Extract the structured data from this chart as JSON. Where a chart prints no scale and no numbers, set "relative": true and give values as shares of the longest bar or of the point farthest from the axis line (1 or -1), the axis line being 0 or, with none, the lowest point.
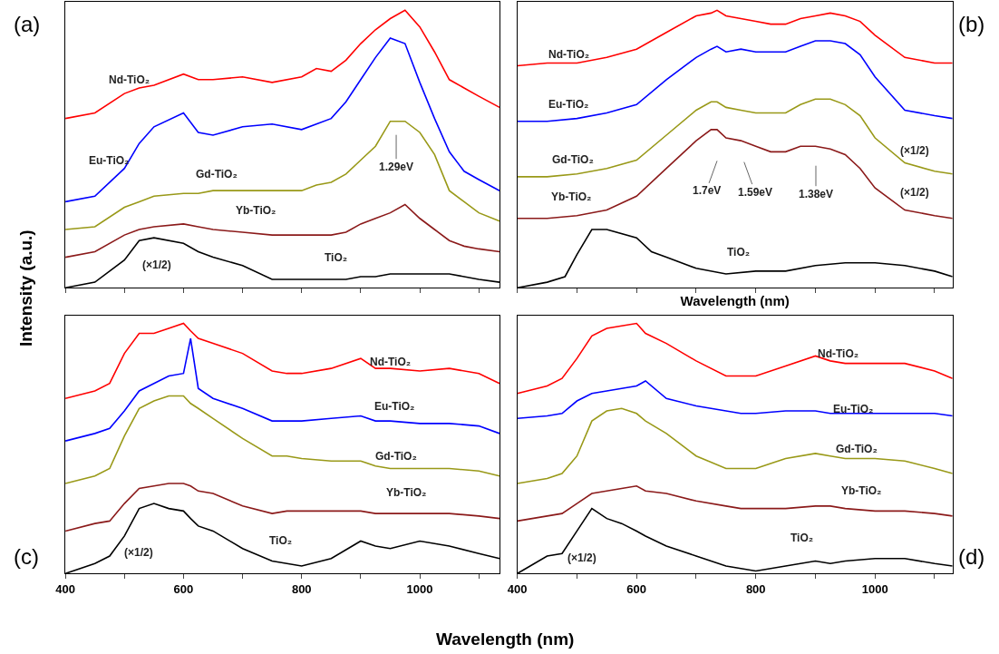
{
  "chart_data": [
    {
      "type": "line",
      "relative": true,
      "title": "(a)",
      "ylabel": "Intensity (a.u.)",
      "tick_labels": false,
      "xlim": [
        400,
        1135
      ],
      "xticks": [
        400,
        {
          "value": 500,
          "label": null
        },
        600,
        {
          "value": 700,
          "label": null
        },
        800,
        {
          "value": 900,
          "label": null
        },
        1000,
        {
          "value": 1100,
          "label": null
        }
      ],
      "x": [
        400,
        450,
        500,
        525,
        550,
        600,
        625,
        650,
        700,
        750,
        800,
        825,
        850,
        875,
        900,
        925,
        950,
        975,
        1000,
        1025,
        1050,
        1075,
        1100,
        1135
      ],
      "series": [
        {
          "name": "Nd-TiO₂",
          "color": "#ff0000",
          "values": [
            0.61,
            0.63,
            0.7,
            0.72,
            0.73,
            0.77,
            0.75,
            0.75,
            0.76,
            0.74,
            0.76,
            0.79,
            0.78,
            0.82,
            0.88,
            0.93,
            0.97,
            1.0,
            0.94,
            0.85,
            0.75,
            0.72,
            0.69,
            0.65
          ]
        },
        {
          "name": "Eu-TiO₂",
          "color": "#0000ff",
          "values": [
            0.31,
            0.33,
            0.43,
            0.52,
            0.58,
            0.63,
            0.56,
            0.55,
            0.58,
            0.59,
            0.57,
            0.59,
            0.61,
            0.67,
            0.75,
            0.83,
            0.9,
            0.88,
            0.74,
            0.61,
            0.49,
            0.42,
            0.39,
            0.35
          ]
        },
        {
          "name": "Gd-TiO₂",
          "color": "#999918",
          "values": [
            0.21,
            0.22,
            0.29,
            0.31,
            0.33,
            0.34,
            0.34,
            0.35,
            0.35,
            0.35,
            0.35,
            0.37,
            0.38,
            0.41,
            0.46,
            0.51,
            0.6,
            0.6,
            0.56,
            0.48,
            0.35,
            0.31,
            0.27,
            0.24
          ]
        },
        {
          "name": "Yb-TiO₂",
          "color": "#8b1a1a",
          "values": [
            0.11,
            0.13,
            0.19,
            0.21,
            0.22,
            0.23,
            0.22,
            0.21,
            0.2,
            0.19,
            0.19,
            0.19,
            0.19,
            0.2,
            0.23,
            0.25,
            0.27,
            0.3,
            0.25,
            0.21,
            0.17,
            0.15,
            0.14,
            0.13
          ]
        },
        {
          "name": "TiO₂",
          "color": "#000000",
          "values": [
            0,
            0.02,
            0.1,
            0.17,
            0.18,
            0.16,
            0.13,
            0.11,
            0.08,
            0.03,
            0.03,
            0.03,
            0.03,
            0.03,
            0.04,
            0.04,
            0.05,
            0.05,
            0.05,
            0.05,
            0.05,
            0.04,
            0.03,
            0.02
          ]
        }
      ],
      "annotations": [
        "(×1/2)",
        "1.29eV"
      ]
    },
    {
      "type": "line",
      "relative": true,
      "title": "(b)",
      "xlabel": "Wavelength (nm)",
      "tick_labels": false,
      "xlim": [
        400,
        1130
      ],
      "xticks": [
        400,
        {
          "value": 500,
          "label": null
        },
        600,
        {
          "value": 700,
          "label": null
        },
        800,
        {
          "value": 900,
          "label": null
        },
        1000,
        {
          "value": 1100,
          "label": null
        }
      ],
      "x": [
        400,
        450,
        500,
        550,
        600,
        650,
        700,
        725,
        735,
        750,
        775,
        800,
        825,
        850,
        875,
        900,
        925,
        950,
        975,
        1000,
        1050,
        1100,
        1130
      ],
      "series": [
        {
          "name": "Nd-TiO₂",
          "color": "#ff0000",
          "values": [
            0.8,
            0.81,
            0.81,
            0.83,
            0.86,
            0.92,
            0.98,
            0.99,
            1.0,
            0.98,
            0.97,
            0.96,
            0.95,
            0.95,
            0.97,
            0.98,
            0.99,
            0.98,
            0.96,
            0.91,
            0.83,
            0.81,
            0.81
          ]
        },
        {
          "name": "Eu-TiO₂",
          "color": "#0000ff",
          "values": [
            0.6,
            0.6,
            0.61,
            0.63,
            0.66,
            0.75,
            0.83,
            0.86,
            0.87,
            0.85,
            0.86,
            0.85,
            0.85,
            0.85,
            0.87,
            0.89,
            0.89,
            0.88,
            0.84,
            0.76,
            0.64,
            0.62,
            0.61
          ]
        },
        {
          "name": "Gd-TiO₂",
          "color": "#999918",
          "values": [
            0.4,
            0.4,
            0.41,
            0.43,
            0.46,
            0.55,
            0.64,
            0.67,
            0.67,
            0.65,
            0.64,
            0.63,
            0.63,
            0.63,
            0.66,
            0.68,
            0.68,
            0.66,
            0.62,
            0.54,
            0.45,
            0.42,
            0.41
          ]
        },
        {
          "name": "Yb-TiO₂",
          "color": "#8b1a1a",
          "values": [
            0.25,
            0.25,
            0.26,
            0.28,
            0.33,
            0.43,
            0.53,
            0.57,
            0.57,
            0.54,
            0.53,
            0.51,
            0.49,
            0.49,
            0.51,
            0.51,
            0.5,
            0.48,
            0.43,
            0.36,
            0.28,
            0.26,
            0.25
          ]
        },
        {
          "name": "TiO₂",
          "color": "#000000",
          "x": [
            400,
            450,
            480,
            500,
            525,
            550,
            600,
            625,
            650,
            700,
            750,
            800,
            850,
            900,
            950,
            1000,
            1050,
            1100,
            1130
          ],
          "values": [
            0,
            0.02,
            0.04,
            0.12,
            0.21,
            0.21,
            0.18,
            0.13,
            0.11,
            0.07,
            0.05,
            0.06,
            0.06,
            0.08,
            0.09,
            0.09,
            0.08,
            0.06,
            0.04
          ]
        }
      ],
      "annotations": [
        "(×1/2)",
        "(×1/2)",
        "1.7eV",
        "1.59eV",
        "1.38eV"
      ]
    },
    {
      "type": "line",
      "relative": true,
      "title": "(c)",
      "xlabel": "Wavelength (nm)",
      "tick_labels": "x",
      "xlim": [
        400,
        1135
      ],
      "xticks": [
        400,
        {
          "value": 500,
          "label": null
        },
        600,
        {
          "value": 700,
          "label": null
        },
        800,
        {
          "value": 900,
          "label": null
        },
        1000,
        {
          "value": 1100,
          "label": null
        }
      ],
      "x": [
        400,
        450,
        475,
        500,
        525,
        550,
        575,
        600,
        612,
        625,
        650,
        700,
        750,
        775,
        800,
        850,
        900,
        925,
        950,
        1000,
        1050,
        1100,
        1135
      ],
      "series": [
        {
          "name": "Nd-TiO₂",
          "color": "#ff0000",
          "values": [
            0.7,
            0.73,
            0.76,
            0.88,
            0.96,
            0.96,
            0.98,
            1.0,
            0.97,
            0.94,
            0.92,
            0.88,
            0.81,
            0.8,
            0.8,
            0.82,
            0.86,
            0.82,
            0.82,
            0.81,
            0.82,
            0.8,
            0.76
          ]
        },
        {
          "name": "Eu-TiO₂",
          "color": "#0000ff",
          "values": [
            0.53,
            0.56,
            0.58,
            0.65,
            0.73,
            0.76,
            0.79,
            0.8,
            0.94,
            0.74,
            0.7,
            0.66,
            0.61,
            0.61,
            0.61,
            0.62,
            0.63,
            0.61,
            0.61,
            0.6,
            0.6,
            0.59,
            0.56
          ]
        },
        {
          "name": "Gd-TiO₂",
          "color": "#999918",
          "values": [
            0.36,
            0.39,
            0.42,
            0.55,
            0.66,
            0.69,
            0.71,
            0.71,
            0.68,
            0.66,
            0.62,
            0.54,
            0.47,
            0.47,
            0.46,
            0.45,
            0.45,
            0.43,
            0.42,
            0.42,
            0.42,
            0.41,
            0.39
          ]
        },
        {
          "name": "Yb-TiO₂",
          "color": "#8b1a1a",
          "values": [
            0.17,
            0.2,
            0.21,
            0.28,
            0.34,
            0.35,
            0.36,
            0.36,
            0.35,
            0.33,
            0.32,
            0.27,
            0.24,
            0.25,
            0.25,
            0.25,
            0.25,
            0.24,
            0.24,
            0.24,
            0.24,
            0.23,
            0.22
          ]
        },
        {
          "name": "TiO₂",
          "color": "#000000",
          "values": [
            0,
            0.04,
            0.07,
            0.15,
            0.26,
            0.28,
            0.26,
            0.25,
            0.22,
            0.19,
            0.17,
            0.1,
            0.05,
            0.04,
            0.03,
            0.06,
            0.13,
            0.11,
            0.1,
            0.13,
            0.11,
            0.08,
            0.06
          ]
        }
      ],
      "annotations": [
        "(×1/2)"
      ]
    },
    {
      "type": "line",
      "relative": true,
      "title": "(d)",
      "tick_labels": "x",
      "xlim": [
        400,
        1130
      ],
      "xticks": [
        400,
        {
          "value": 500,
          "label": null
        },
        600,
        {
          "value": 700,
          "label": null
        },
        800,
        {
          "value": 900,
          "label": null
        },
        1000,
        {
          "value": 1100,
          "label": null
        }
      ],
      "x": [
        400,
        450,
        475,
        500,
        525,
        550,
        575,
        600,
        615,
        650,
        700,
        750,
        775,
        800,
        850,
        900,
        925,
        950,
        1000,
        1050,
        1100,
        1130
      ],
      "series": [
        {
          "name": "Nd-TiO₂",
          "color": "#ff0000",
          "values": [
            0.72,
            0.75,
            0.78,
            0.86,
            0.95,
            0.98,
            0.99,
            1.0,
            0.96,
            0.92,
            0.85,
            0.79,
            0.79,
            0.79,
            0.83,
            0.87,
            0.85,
            0.84,
            0.84,
            0.84,
            0.81,
            0.78
          ]
        },
        {
          "name": "Eu-TiO₂",
          "color": "#0000ff",
          "values": [
            0.62,
            0.63,
            0.64,
            0.69,
            0.72,
            0.73,
            0.74,
            0.75,
            0.77,
            0.7,
            0.67,
            0.65,
            0.64,
            0.64,
            0.65,
            0.65,
            0.64,
            0.64,
            0.64,
            0.64,
            0.64,
            0.63
          ]
        },
        {
          "name": "Gd-TiO₂",
          "color": "#999918",
          "values": [
            0.36,
            0.38,
            0.4,
            0.47,
            0.61,
            0.65,
            0.66,
            0.64,
            0.61,
            0.56,
            0.47,
            0.42,
            0.42,
            0.42,
            0.46,
            0.48,
            0.47,
            0.46,
            0.46,
            0.45,
            0.42,
            0.4
          ]
        },
        {
          "name": "Yb-TiO₂",
          "color": "#8b1a1a",
          "values": [
            0.21,
            0.23,
            0.24,
            0.28,
            0.32,
            0.33,
            0.34,
            0.35,
            0.33,
            0.32,
            0.29,
            0.27,
            0.26,
            0.26,
            0.26,
            0.27,
            0.27,
            0.26,
            0.25,
            0.25,
            0.24,
            0.23
          ]
        },
        {
          "name": "TiO₂",
          "color": "#000000",
          "values": [
            0,
            0.07,
            0.08,
            0.17,
            0.26,
            0.22,
            0.2,
            0.17,
            0.15,
            0.11,
            0.07,
            0.03,
            0.02,
            0.01,
            0.03,
            0.05,
            0.04,
            0.05,
            0.06,
            0.06,
            0.04,
            0.03
          ]
        }
      ],
      "annotations": [
        "(×1/2)"
      ]
    }
  ]
}
